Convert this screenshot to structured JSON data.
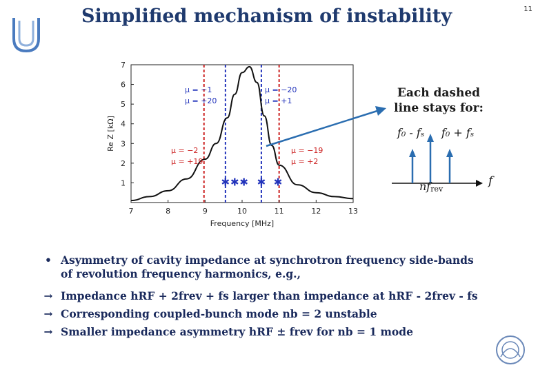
{
  "slide": {
    "title": "Simplified mechanism of instability",
    "number": "11"
  },
  "chart_data": {
    "type": "line",
    "xlabel": "Frequency [MHz]",
    "ylabel": "Re Z [kΩ]",
    "xlim": [
      7,
      13
    ],
    "ylim": [
      0,
      7
    ],
    "xticks": [
      "7",
      "8",
      "9",
      "10",
      "11",
      "12",
      "13"
    ],
    "yticks": [
      "1",
      "2",
      "3",
      "4",
      "5",
      "6",
      "7"
    ],
    "grid": false,
    "series": [
      {
        "x": [
          7.0,
          7.5,
          8.0,
          8.5,
          9.0,
          9.3,
          9.6,
          9.8,
          10.0,
          10.2,
          10.4,
          10.6,
          10.8,
          11.0,
          11.5,
          12.0,
          12.5,
          13.0
        ],
        "y": [
          0.1,
          0.3,
          0.6,
          1.2,
          2.2,
          3.0,
          4.3,
          5.5,
          6.6,
          6.9,
          6.1,
          4.4,
          2.9,
          1.9,
          0.9,
          0.5,
          0.3,
          0.2
        ]
      }
    ],
    "lines": [
      {
        "x": 8.97,
        "color": "#cc2222"
      },
      {
        "x": 9.55,
        "color": "#2233bb"
      },
      {
        "x": 10.52,
        "color": "#2233bb"
      },
      {
        "x": 11.0,
        "color": "#cc2222"
      }
    ],
    "markers": [
      9.55,
      9.8,
      10.05,
      10.52,
      10.97
    ],
    "annotations": [
      {
        "lines": [
          "μ = −1",
          "μ = +20"
        ],
        "color": "#2233bb"
      },
      {
        "lines": [
          "μ = −20",
          "μ = +1"
        ],
        "color": "#2233bb"
      },
      {
        "lines": [
          "μ = −2",
          "μ = +19"
        ],
        "color": "#cc2222"
      },
      {
        "lines": [
          "μ = −19",
          "μ = +2"
        ],
        "color": "#cc2222"
      }
    ]
  },
  "annotation": {
    "line1": "Each dashed",
    "line2": "line stays for:",
    "minus_label": "f₀ - fₛ",
    "plus_label": "f₀ + fₛ",
    "center_label": "nf",
    "center_sub": "rev",
    "axis_label": "f"
  },
  "bullets": [
    {
      "mark": "•",
      "text": "Asymmetry of cavity impedance at synchrotron frequency side-bands"
    },
    {
      "mark": "",
      "text": "of revolution frequency harmonics, e.g.,"
    },
    {
      "mark": "→",
      "text": "Impedance hRF + 2frev + fs larger than  impedance at hRF - 2frev - fs"
    },
    {
      "mark": "→",
      "text": "Corresponding coupled-bunch mode nb = 2 unstable"
    },
    {
      "mark": "→",
      "text": "Smaller impedance asymmetry hRF ± frev  for nb = 1 mode"
    }
  ]
}
